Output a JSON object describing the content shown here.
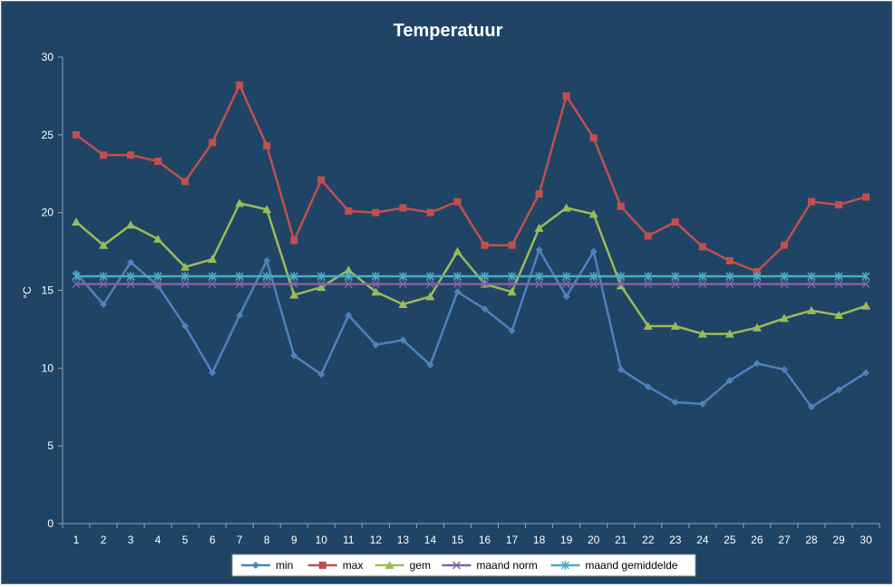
{
  "chart_data": {
    "type": "line",
    "title": "Temperatuur",
    "xlabel": "",
    "ylabel": "°C",
    "ylim": [
      0,
      30
    ],
    "yticks": [
      0,
      5,
      10,
      15,
      20,
      25,
      30
    ],
    "grid": false,
    "legend": "bottom",
    "categories": [
      "1",
      "2",
      "3",
      "4",
      "5",
      "6",
      "7",
      "8",
      "9",
      "10",
      "11",
      "12",
      "13",
      "14",
      "15",
      "16",
      "17",
      "18",
      "19",
      "20",
      "21",
      "22",
      "23",
      "24",
      "25",
      "26",
      "27",
      "28",
      "29",
      "30"
    ],
    "series": [
      {
        "name": "min",
        "color": "#4f81bd",
        "marker": "diamond",
        "values": [
          16.1,
          14.1,
          16.8,
          15.3,
          12.7,
          9.7,
          13.4,
          16.9,
          10.8,
          9.6,
          13.4,
          11.5,
          11.8,
          10.2,
          14.9,
          13.8,
          12.4,
          17.6,
          14.6,
          17.5,
          9.9,
          8.8,
          7.8,
          7.7,
          9.2,
          10.3,
          9.9,
          7.5,
          8.6,
          9.7
        ]
      },
      {
        "name": "max",
        "color": "#c0504d",
        "marker": "square",
        "values": [
          25.0,
          23.7,
          23.7,
          23.3,
          22.0,
          24.5,
          28.2,
          24.3,
          18.2,
          22.1,
          20.1,
          20.0,
          20.3,
          20.0,
          20.7,
          17.9,
          17.9,
          21.2,
          27.5,
          24.8,
          20.4,
          18.5,
          19.4,
          17.8,
          16.9,
          16.2,
          17.9,
          20.7,
          20.5,
          21.0
        ]
      },
      {
        "name": "gem",
        "color": "#9bbb59",
        "marker": "triangle",
        "values": [
          19.4,
          17.9,
          19.2,
          18.3,
          16.5,
          17.0,
          20.6,
          20.2,
          14.7,
          15.2,
          16.3,
          14.9,
          14.1,
          14.6,
          17.5,
          15.4,
          14.9,
          19.0,
          20.3,
          19.9,
          15.3,
          12.7,
          12.7,
          12.2,
          12.2,
          12.6,
          13.2,
          13.7,
          13.4,
          14.0
        ]
      },
      {
        "name": "maand norm",
        "color": "#8064a2",
        "marker": "x",
        "values": [
          15.4,
          15.4,
          15.4,
          15.4,
          15.4,
          15.4,
          15.4,
          15.4,
          15.4,
          15.4,
          15.4,
          15.4,
          15.4,
          15.4,
          15.4,
          15.4,
          15.4,
          15.4,
          15.4,
          15.4,
          15.4,
          15.4,
          15.4,
          15.4,
          15.4,
          15.4,
          15.4,
          15.4,
          15.4,
          15.4
        ]
      },
      {
        "name": "maand gemiddelde",
        "color": "#4bacc6",
        "marker": "star",
        "values": [
          15.9,
          15.9,
          15.9,
          15.9,
          15.9,
          15.9,
          15.9,
          15.9,
          15.9,
          15.9,
          15.9,
          15.9,
          15.9,
          15.9,
          15.9,
          15.9,
          15.9,
          15.9,
          15.9,
          15.9,
          15.9,
          15.9,
          15.9,
          15.9,
          15.9,
          15.9,
          15.9,
          15.9,
          15.9,
          15.9
        ]
      }
    ]
  }
}
